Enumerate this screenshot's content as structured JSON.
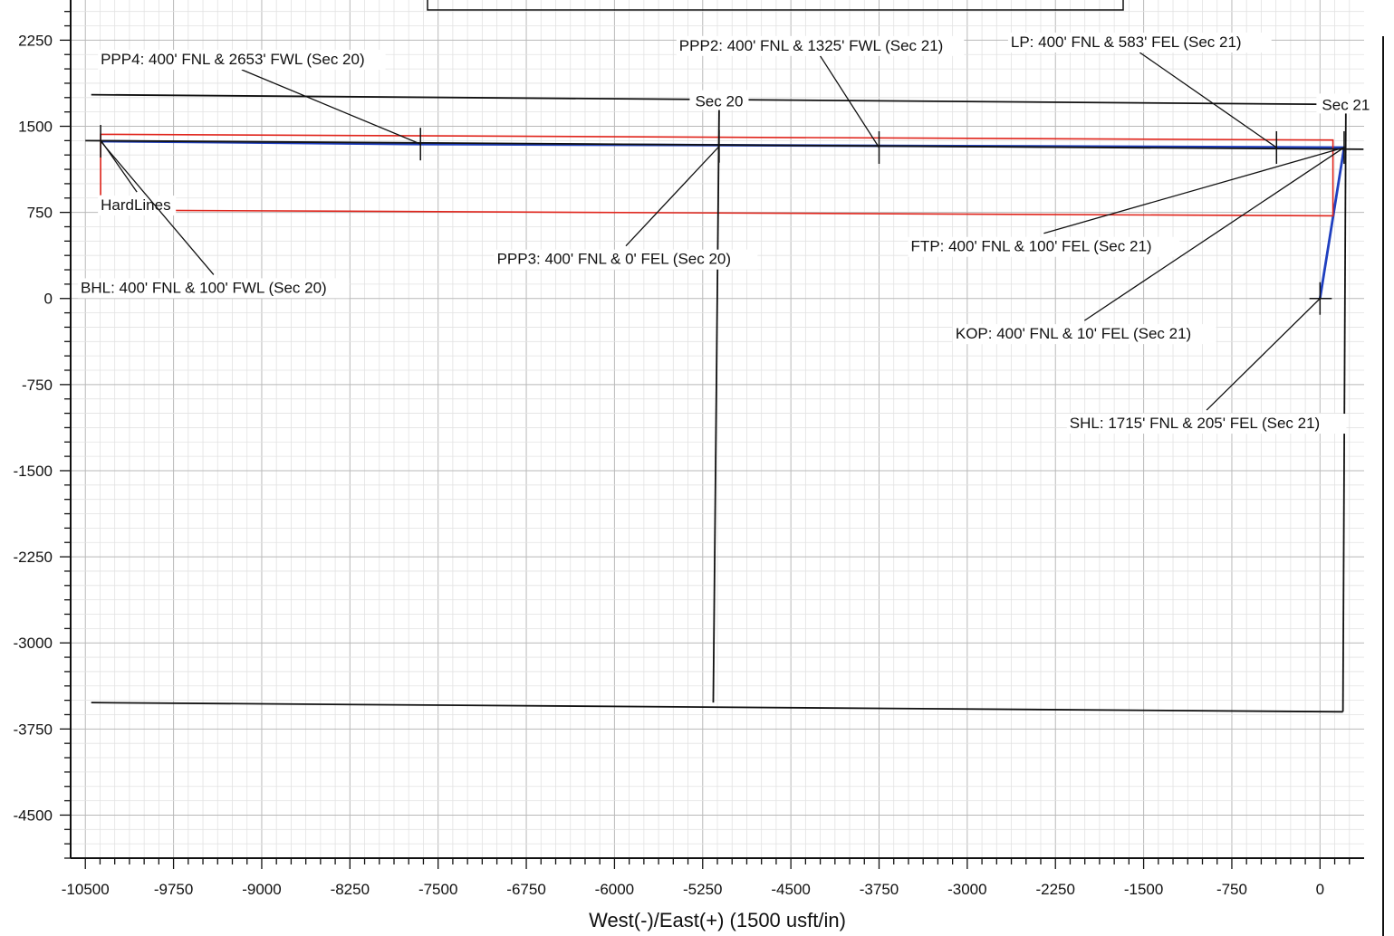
{
  "chart_data": {
    "type": "line",
    "title": "",
    "xlabel": "West(-)/East(+) (1500 usft/in)",
    "ylabel": "",
    "xlim": [
      -10625,
      375
    ],
    "ylim": [
      -4875,
      2600
    ],
    "grid": true,
    "x_ticks": [
      -10500,
      -9750,
      -9000,
      -8250,
      -7500,
      -6750,
      -6000,
      -5250,
      -4500,
      -3750,
      -3000,
      -2250,
      -1500,
      -750,
      0
    ],
    "x_tick_labels": [
      "-10500",
      "-9750",
      "-9000",
      "-8250",
      "-7500",
      "-6750",
      "-6000",
      "-5250",
      "-4500",
      "-3750",
      "-3000",
      "-2250",
      "-1500",
      "-750",
      "0"
    ],
    "y_ticks": [
      2250,
      1500,
      750,
      0,
      -750,
      -1500,
      -2250,
      -3000,
      -3750,
      -4500
    ],
    "y_tick_labels": [
      "2250",
      "1500",
      "750",
      "0",
      "-750",
      "-1500",
      "-2250",
      "-3000",
      "-3750",
      "-4500"
    ],
    "series": [
      {
        "role": "wellbore",
        "color": "#1f3fbf",
        "x": [
          0,
          205,
          205,
          -7650,
          -10370
        ],
        "y": [
          0,
          1315,
          1315,
          1345,
          1370
        ]
      },
      {
        "role": "hardlines",
        "color": "#e0241b",
        "polyline": {
          "x": [
            -10370,
            -10370,
            110,
            110,
            -10370
          ],
          "y": [
            900,
            1430,
            1380,
            720,
            770
          ]
        }
      },
      {
        "role": "section-lines",
        "color": "#111111",
        "segments": [
          {
            "x": [
              -10450,
              220
            ],
            "y": [
              1775,
              1690
            ]
          },
          {
            "x": [
              -10450,
              195
            ],
            "y": [
              -3520,
              -3600
            ]
          },
          {
            "x": [
              195,
              220
            ],
            "y": [
              -3600,
              1690
            ]
          },
          {
            "x": [
              -5110,
              -5160
            ],
            "y": [
              1650,
              -3520
            ]
          },
          {
            "x": [
              -10500,
              370
            ],
            "y": [
              1375,
              1300
            ]
          }
        ]
      }
    ],
    "annotations": [
      {
        "text": "PPP4: 400' FNL & 2653' FWL (Sec 20)",
        "x": -7650,
        "y": 1345,
        "label_x": -10370,
        "label_y": 2040
      },
      {
        "text": "PPP2: 400' FNL & 1325' FWL (Sec 21)",
        "x": -3750,
        "y": 1315,
        "label_x": -5450,
        "label_y": 2160
      },
      {
        "text": "LP: 400' FNL & 583' FEL (Sec 21)",
        "x": -370,
        "y": 1315,
        "label_x": -2630,
        "label_y": 2190
      },
      {
        "text": "Sec 20",
        "x": -5110,
        "y": 1720,
        "label_x": -5110,
        "label_y": 1720
      },
      {
        "text": "Sec 21",
        "x": 220,
        "y": 1690,
        "label_x": 220,
        "label_y": 1690
      },
      {
        "text": "HardLines",
        "x": -10370,
        "y": 1380,
        "label_x": -10370,
        "label_y": 770
      },
      {
        "text": "PPP3: 400' FNL & 0' FEL (Sec 20)",
        "x": -5110,
        "y": 1325,
        "label_x": -7000,
        "label_y": 300
      },
      {
        "text": "BHL: 400' FNL & 100' FWL (Sec 20)",
        "x": -10370,
        "y": 1370,
        "label_x": -10540,
        "label_y": 50
      },
      {
        "text": "FTP: 400' FNL & 100' FEL (Sec 21)",
        "x": 205,
        "y": 1315,
        "label_x": -3480,
        "label_y": 410
      },
      {
        "text": "KOP: 400' FNL & 10' FEL (Sec 21)",
        "x": 205,
        "y": 1315,
        "label_x": -3100,
        "label_y": -350
      },
      {
        "text": "SHL: 1715' FNL & 205' FEL (Sec 21)",
        "x": 0,
        "y": 0,
        "label_x": -2130,
        "label_y": -1130
      }
    ]
  }
}
